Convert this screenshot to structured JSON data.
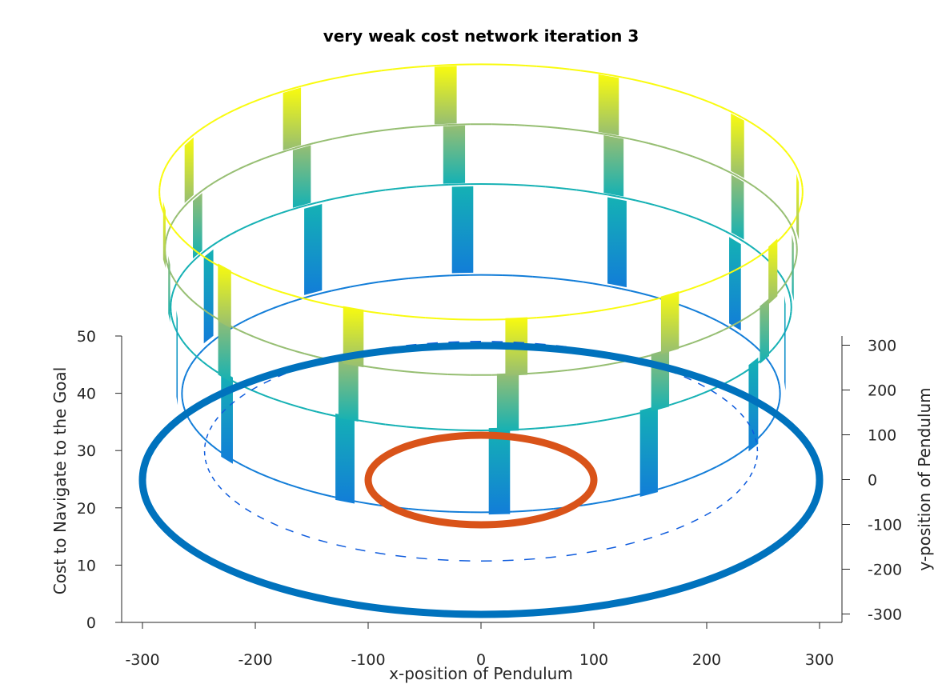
{
  "chart_data": {
    "type": "surface3d",
    "title": "very weak cost network iteration 3",
    "xlabel": "x-position of Pendulum",
    "ylabel": "y-position of Pendulum",
    "zlabel": "Cost to Navigate to the Goal",
    "xlim": [
      -300,
      300
    ],
    "ylim": [
      -300,
      300
    ],
    "zlim": [
      0,
      50
    ],
    "x_ticks": [
      "-300",
      "-200",
      "-100",
      "0",
      "100",
      "200",
      "300"
    ],
    "y_ticks": [
      "300",
      "200",
      "100",
      "0",
      "-100",
      "-200",
      "-300"
    ],
    "z_ticks": [
      "50",
      "40",
      "30",
      "20",
      "10",
      "0"
    ],
    "colormap": "parula",
    "series": [
      {
        "shape": "circle",
        "radius": 300,
        "z": 0,
        "color": "#0072BD"
      },
      {
        "shape": "circle",
        "radius": 100,
        "z": 0,
        "color": "#D95319"
      }
    ],
    "cost_rings": [
      {
        "radius": 265,
        "cost": 15
      },
      {
        "radius": 275,
        "cost": 30
      },
      {
        "radius": 280,
        "cost": 40
      },
      {
        "radius": 285,
        "cost": 50
      }
    ]
  }
}
